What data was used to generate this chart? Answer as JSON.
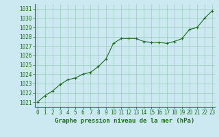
{
  "x": [
    0,
    1,
    2,
    3,
    4,
    5,
    6,
    7,
    8,
    9,
    10,
    11,
    12,
    13,
    14,
    15,
    16,
    17,
    18,
    19,
    20,
    21,
    22,
    23
  ],
  "y": [
    1021.0,
    1021.7,
    1022.2,
    1022.9,
    1023.4,
    1023.6,
    1024.0,
    1024.2,
    1024.8,
    1025.6,
    1027.3,
    1027.8,
    1027.8,
    1027.8,
    1027.5,
    1027.4,
    1027.4,
    1027.3,
    1027.5,
    1027.8,
    1028.8,
    1029.0,
    1030.0,
    1030.8
  ],
  "line_color": "#1a6b1a",
  "marker": "+",
  "marker_color": "#1a6b1a",
  "bg_color": "#cce8f0",
  "grid_color": "#99ccbb",
  "xlabel": "Graphe pression niveau de la mer (hPa)",
  "xlabel_color": "#1a6b1a",
  "tick_color": "#1a6b1a",
  "ylim": [
    1020.5,
    1031.5
  ],
  "yticks": [
    1021,
    1022,
    1023,
    1024,
    1025,
    1026,
    1027,
    1028,
    1029,
    1030,
    1031
  ],
  "xticks": [
    0,
    1,
    2,
    3,
    4,
    5,
    6,
    7,
    8,
    9,
    10,
    11,
    12,
    13,
    14,
    15,
    16,
    17,
    18,
    19,
    20,
    21,
    22,
    23
  ],
  "xlim": [
    -0.3,
    23.3
  ],
  "tick_fontsize": 5.5,
  "xlabel_fontsize": 6.5,
  "linewidth": 0.8,
  "markersize": 3.5
}
